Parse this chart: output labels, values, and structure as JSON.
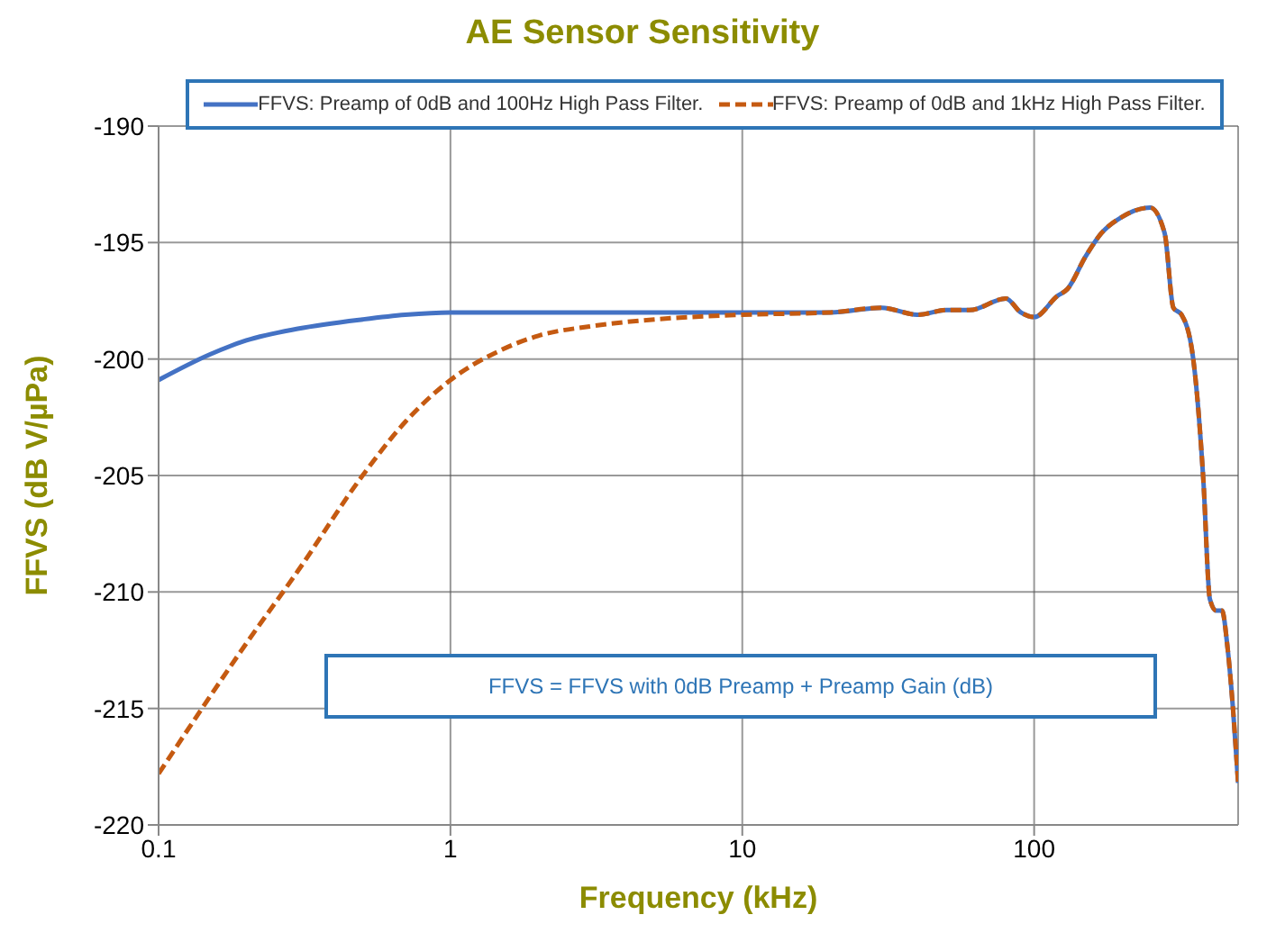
{
  "chart_data": {
    "type": "line",
    "title": "AE Sensor Sensitivity",
    "xlabel": "Frequency (kHz)",
    "ylabel": "FFVS (dB V/µPa)",
    "log": "x",
    "xlim": [
      0.1,
      500
    ],
    "xticks": [
      0.1,
      1,
      10,
      100
    ],
    "ylim": [
      -220,
      -190
    ],
    "yticks": [
      -220,
      -215,
      -210,
      -205,
      -200,
      -195,
      -190
    ],
    "grid": true,
    "legend": "top",
    "marker": "none",
    "annotations": [
      "FFVS = FFVS with 0dB Preamp + Preamp Gain (dB)"
    ],
    "series": [
      {
        "name": "FFVS: Preamp of 0dB and 100Hz High Pass Filter.",
        "color": "#4472c4",
        "line_style": "solid",
        "x": [
          0.1,
          0.15,
          0.2,
          0.3,
          0.5,
          0.7,
          1,
          2,
          5,
          10,
          20,
          30,
          40,
          50,
          60,
          80,
          90,
          100,
          120,
          130,
          150,
          170,
          200,
          250,
          280,
          300,
          320,
          350,
          380,
          400,
          420,
          440,
          460,
          480,
          500
        ],
        "values": [
          -200.9,
          -199.8,
          -199.2,
          -198.7,
          -198.3,
          -198.1,
          -198.0,
          -198.0,
          -198.0,
          -198.0,
          -198.0,
          -197.8,
          -198.1,
          -197.9,
          -197.9,
          -197.4,
          -198.0,
          -198.2,
          -197.3,
          -197.0,
          -195.6,
          -194.6,
          -193.9,
          -193.5,
          -194.6,
          -197.8,
          -198.1,
          -199.9,
          -205.2,
          -210.3,
          -210.8,
          -210.8,
          -212.4,
          -215.0,
          -218.2
        ]
      },
      {
        "name": "FFVS: Preamp of 0dB and 1kHz High Pass Filter.",
        "color": "#c55a11",
        "line_style": "dashed",
        "x": [
          0.1,
          0.2,
          0.3,
          0.5,
          0.7,
          1,
          1.5,
          2,
          3,
          5,
          10,
          20,
          30,
          40,
          50,
          60,
          80,
          90,
          100,
          120,
          130,
          150,
          170,
          200,
          250,
          280,
          300,
          320,
          350,
          380,
          400,
          420,
          440,
          460,
          480,
          500
        ],
        "values": [
          -217.8,
          -212.2,
          -209.1,
          -205.0,
          -202.7,
          -200.9,
          -199.6,
          -199.0,
          -198.6,
          -198.3,
          -198.1,
          -198.0,
          -197.8,
          -198.1,
          -197.9,
          -197.9,
          -197.4,
          -198.0,
          -198.2,
          -197.3,
          -197.0,
          -195.6,
          -194.6,
          -193.9,
          -193.5,
          -194.6,
          -197.8,
          -198.1,
          -199.9,
          -205.2,
          -210.3,
          -210.8,
          -210.8,
          -212.4,
          -215.0,
          -218.2
        ]
      }
    ]
  }
}
